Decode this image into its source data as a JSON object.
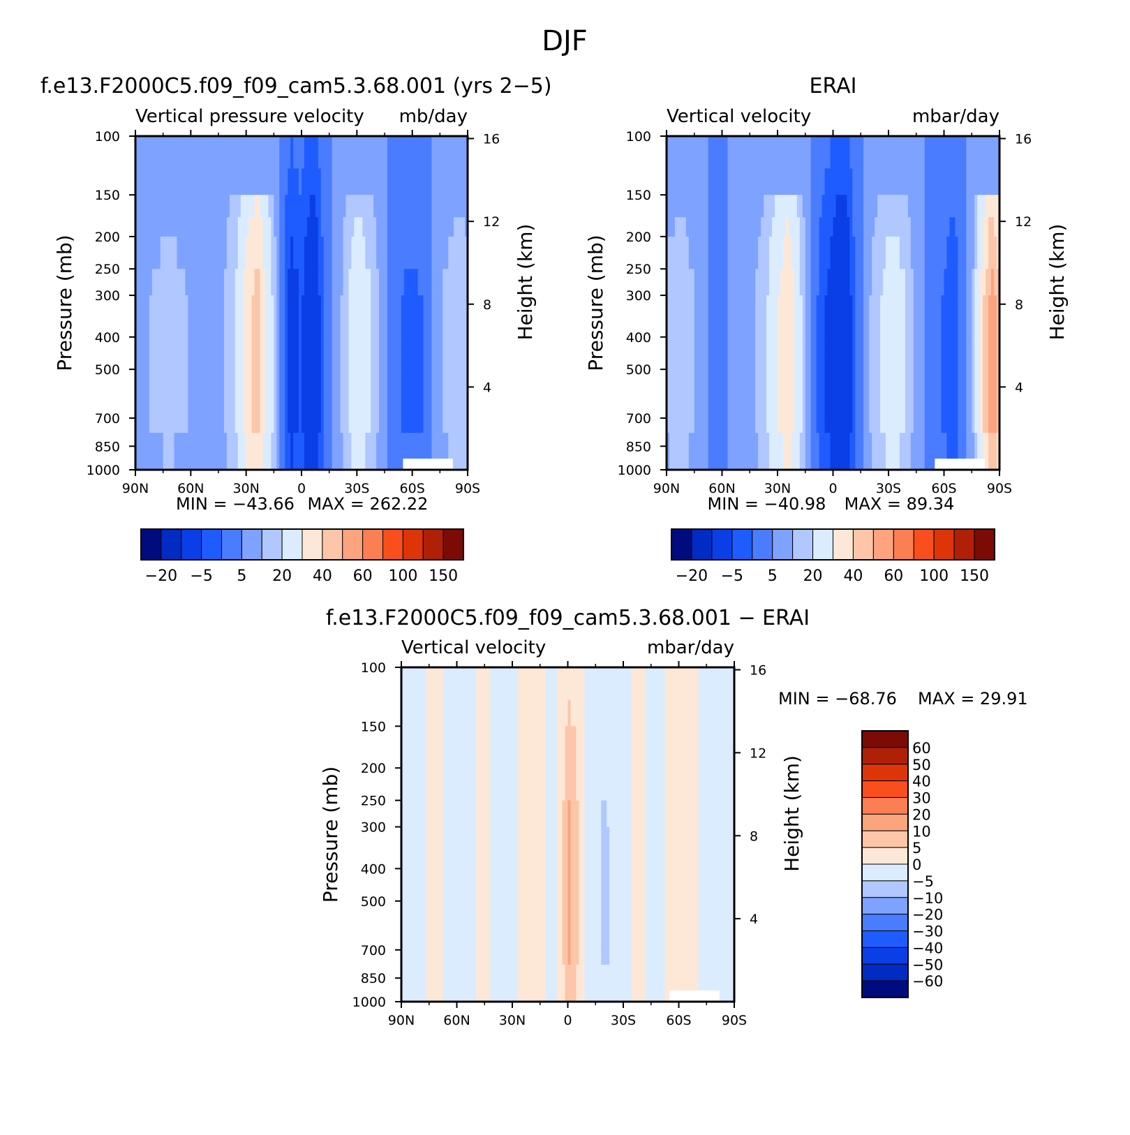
{
  "figure": {
    "title": "DJF"
  },
  "colors": {
    "background": "#ffffff",
    "axis": "#000000",
    "missing": "#ffffff"
  },
  "chart_data": [
    {
      "id": "model",
      "type": "heatmap",
      "title": "f.e13.F2000C5.f09_f09_cam5.3.68.001 (yrs 2−5)",
      "variable": "Vertical pressure velocity",
      "units": "mb/day",
      "ylabel": "Pressure (mb)",
      "ylabel_right": "Height (km)",
      "x_ticks": [
        "90N",
        "60N",
        "30N",
        "0",
        "30S",
        "60S",
        "90S"
      ],
      "y_ticks": [
        100,
        150,
        200,
        250,
        300,
        400,
        500,
        700,
        850,
        1000
      ],
      "y_ticks_right": [
        16,
        12,
        8,
        4
      ],
      "ylim": [
        1000,
        100
      ],
      "xlim": [
        90,
        -90
      ],
      "min_label": "MIN = −43.66",
      "max_label": "MAX = 262.22",
      "min": -43.66,
      "max": 262.22,
      "colorbar": {
        "orientation": "horizontal",
        "labels": [
          "−20",
          "−5",
          "5",
          "20",
          "40",
          "60",
          "100",
          "150"
        ],
        "colors": [
          "#000c7d",
          "#002cc4",
          "#0a3ee6",
          "#1e5cff",
          "#4a7cff",
          "#7ea2ff",
          "#b0c8ff",
          "#dcecff",
          "#fde8d8",
          "#fdc6a8",
          "#fca47e",
          "#fb7f52",
          "#f84f1c",
          "#de3508",
          "#b02007",
          "#7c0b05"
        ]
      },
      "field_profile": [
        {
          "lat": 90,
          "v": 5
        },
        {
          "lat": 82,
          "v": 5
        },
        {
          "lat": 72,
          "v": 7
        },
        {
          "lat": 62,
          "v": 5
        },
        {
          "lat": 55,
          "v": 4
        },
        {
          "lat": 45,
          "v": 3
        },
        {
          "lat": 36,
          "v": 10
        },
        {
          "lat": 30,
          "v": 24
        },
        {
          "lat": 24,
          "v": 36
        },
        {
          "lat": 18,
          "v": 16
        },
        {
          "lat": 12,
          "v": 1
        },
        {
          "lat": 6,
          "v": -14
        },
        {
          "lat": 0,
          "v": -9
        },
        {
          "lat": -6,
          "v": -20
        },
        {
          "lat": -12,
          "v": -5
        },
        {
          "lat": -20,
          "v": 3
        },
        {
          "lat": -30,
          "v": 16
        },
        {
          "lat": -38,
          "v": 10
        },
        {
          "lat": -46,
          "v": 0
        },
        {
          "lat": -56,
          "v": -6
        },
        {
          "lat": -66,
          "v": -5
        },
        {
          "lat": -76,
          "v": 5
        },
        {
          "lat": -86,
          "v": 8
        },
        {
          "lat": -90,
          "v": 6
        }
      ]
    },
    {
      "id": "obs",
      "type": "heatmap",
      "title": "ERAI",
      "variable": "Vertical velocity",
      "units": "mbar/day",
      "ylabel": "Pressure (mb)",
      "ylabel_right": "Height (km)",
      "x_ticks": [
        "90N",
        "60N",
        "30N",
        "0",
        "30S",
        "60S",
        "90S"
      ],
      "y_ticks": [
        100,
        150,
        200,
        250,
        300,
        400,
        500,
        700,
        850,
        1000
      ],
      "y_ticks_right": [
        16,
        12,
        8,
        4
      ],
      "ylim": [
        1000,
        100
      ],
      "xlim": [
        90,
        -90
      ],
      "min_label": "MIN = −40.98",
      "max_label": "MAX =  89.34",
      "min": -40.98,
      "max": 89.34,
      "colorbar": {
        "orientation": "horizontal",
        "labels": [
          "−20",
          "−5",
          "5",
          "20",
          "40",
          "60",
          "100",
          "150"
        ],
        "colors": [
          "#000c7d",
          "#002cc4",
          "#0a3ee6",
          "#1e5cff",
          "#4a7cff",
          "#7ea2ff",
          "#b0c8ff",
          "#dcecff",
          "#fde8d8",
          "#fdc6a8",
          "#fca47e",
          "#fb7f52",
          "#f84f1c",
          "#de3508",
          "#b02007",
          "#7c0b05"
        ]
      },
      "field_profile": [
        {
          "lat": 90,
          "v": 6
        },
        {
          "lat": 82,
          "v": 8
        },
        {
          "lat": 72,
          "v": 4
        },
        {
          "lat": 62,
          "v": -4
        },
        {
          "lat": 55,
          "v": 2
        },
        {
          "lat": 45,
          "v": 3
        },
        {
          "lat": 36,
          "v": 9
        },
        {
          "lat": 30,
          "v": 20
        },
        {
          "lat": 24,
          "v": 30
        },
        {
          "lat": 18,
          "v": 12
        },
        {
          "lat": 12,
          "v": 0
        },
        {
          "lat": 6,
          "v": -8
        },
        {
          "lat": 0,
          "v": -14
        },
        {
          "lat": -6,
          "v": -20
        },
        {
          "lat": -12,
          "v": -5
        },
        {
          "lat": -20,
          "v": 5
        },
        {
          "lat": -30,
          "v": 14
        },
        {
          "lat": -38,
          "v": 12
        },
        {
          "lat": -46,
          "v": 2
        },
        {
          "lat": -56,
          "v": -4
        },
        {
          "lat": -66,
          "v": -8
        },
        {
          "lat": -76,
          "v": 6
        },
        {
          "lat": -86,
          "v": 48
        },
        {
          "lat": -90,
          "v": 30
        }
      ]
    },
    {
      "id": "diff",
      "type": "heatmap",
      "title": "f.e13.F2000C5.f09_f09_cam5.3.68.001 − ERAI",
      "variable": "Vertical velocity",
      "units": "mbar/day",
      "ylabel": "Pressure (mb)",
      "ylabel_right": "Height (km)",
      "x_ticks": [
        "90N",
        "60N",
        "30N",
        "0",
        "30S",
        "60S",
        "90S"
      ],
      "y_ticks": [
        100,
        150,
        200,
        250,
        300,
        400,
        500,
        700,
        850,
        1000
      ],
      "y_ticks_right": [
        16,
        12,
        8,
        4
      ],
      "ylim": [
        1000,
        100
      ],
      "xlim": [
        90,
        -90
      ],
      "min_label": "MIN = −68.76",
      "max_label": "MAX =   29.91",
      "min": -68.76,
      "max": 29.91,
      "colorbar": {
        "orientation": "vertical",
        "labels": [
          "60",
          "50",
          "40",
          "30",
          "20",
          "10",
          "5",
          "0",
          "−5",
          "−10",
          "−20",
          "−30",
          "−40",
          "−50",
          "−60"
        ],
        "colors": [
          "#7c0b05",
          "#b02007",
          "#de3508",
          "#f84f1c",
          "#fb7f52",
          "#fca47e",
          "#fdc6a8",
          "#fde8d8",
          "#dcecff",
          "#b0c8ff",
          "#7ea2ff",
          "#4a7cff",
          "#1e5cff",
          "#0a3ee6",
          "#002cc4",
          "#000c7d"
        ]
      },
      "field_profile": [
        {
          "lat": 90,
          "v": -1
        },
        {
          "lat": 80,
          "v": -2
        },
        {
          "lat": 72,
          "v": 2
        },
        {
          "lat": 64,
          "v": -2
        },
        {
          "lat": 55,
          "v": -1
        },
        {
          "lat": 45,
          "v": 1
        },
        {
          "lat": 36,
          "v": -2
        },
        {
          "lat": 30,
          "v": -3
        },
        {
          "lat": 24,
          "v": 2
        },
        {
          "lat": 16,
          "v": 2
        },
        {
          "lat": 8,
          "v": -2
        },
        {
          "lat": 2,
          "v": 6
        },
        {
          "lat": 0,
          "v": 12
        },
        {
          "lat": -4,
          "v": 8
        },
        {
          "lat": -10,
          "v": -2
        },
        {
          "lat": -20,
          "v": -6
        },
        {
          "lat": -30,
          "v": -2
        },
        {
          "lat": -38,
          "v": 2
        },
        {
          "lat": -46,
          "v": -2
        },
        {
          "lat": -56,
          "v": 1
        },
        {
          "lat": -66,
          "v": 2
        },
        {
          "lat": -76,
          "v": -2
        },
        {
          "lat": -86,
          "v": -3
        },
        {
          "lat": -90,
          "v": -2
        }
      ]
    }
  ]
}
